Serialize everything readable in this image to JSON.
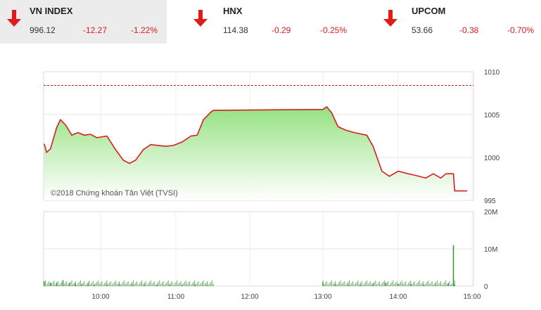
{
  "tickers": [
    {
      "name": "VN INDEX",
      "value": "996.12",
      "change": "-12.27",
      "percent": "-1.22%",
      "direction": "down-arrow-icon"
    },
    {
      "name": "HNX",
      "value": "114.38",
      "change": "-0.29",
      "percent": "-0.25%",
      "direction": "down-arrow-icon"
    },
    {
      "name": "UPCOM",
      "value": "53.66",
      "change": "-0.38",
      "percent": "-0.70%",
      "direction": "down-arrow-icon"
    }
  ],
  "colors": {
    "down": "#e01b1b",
    "line": "#d41f1f",
    "fill_top": "#8fe07a",
    "volume": "#2e8b2e"
  },
  "chart": {
    "watermark": "©2018 Chứng khoán Tân Việt (TVSI)",
    "price_ticks": [
      "1010",
      "1005",
      "1000",
      "995"
    ],
    "volume_ticks": [
      "20M",
      "10M",
      "0"
    ],
    "time_ticks": [
      "10:00",
      "11:00",
      "12:00",
      "13:00",
      "14:00",
      "15:00"
    ]
  },
  "chart_data": {
    "type": "line",
    "reference_value": 1008.4,
    "price_axis": {
      "min": 995,
      "max": 1010
    },
    "volume_axis": {
      "min": 0,
      "max": 20000000
    },
    "price_series": [
      [
        "09:15",
        1001.6
      ],
      [
        "09:17",
        1000.6
      ],
      [
        "09:20",
        1001.0
      ],
      [
        "09:25",
        1003.5
      ],
      [
        "09:28",
        1004.4
      ],
      [
        "09:32",
        1003.8
      ],
      [
        "09:37",
        1002.6
      ],
      [
        "09:42",
        1002.9
      ],
      [
        "09:47",
        1002.6
      ],
      [
        "09:52",
        1002.7
      ],
      [
        "09:57",
        1002.3
      ],
      [
        "10:05",
        1002.5
      ],
      [
        "10:12",
        1000.9
      ],
      [
        "10:18",
        999.7
      ],
      [
        "10:23",
        999.3
      ],
      [
        "10:28",
        999.7
      ],
      [
        "10:34",
        1000.9
      ],
      [
        "10:40",
        1001.5
      ],
      [
        "10:46",
        1001.4
      ],
      [
        "10:52",
        1001.3
      ],
      [
        "10:58",
        1001.4
      ],
      [
        "11:05",
        1001.8
      ],
      [
        "11:12",
        1002.5
      ],
      [
        "11:17",
        1002.6
      ],
      [
        "11:22",
        1004.4
      ],
      [
        "11:28",
        1005.3
      ],
      [
        "11:30",
        1005.5
      ],
      [
        "13:00",
        1005.6
      ],
      [
        "13:03",
        1005.9
      ],
      [
        "13:07",
        1005.2
      ],
      [
        "13:12",
        1003.6
      ],
      [
        "13:18",
        1003.2
      ],
      [
        "13:25",
        1002.9
      ],
      [
        "13:35",
        1002.6
      ],
      [
        "13:40",
        1001.3
      ],
      [
        "13:47",
        998.4
      ],
      [
        "13:53",
        997.8
      ],
      [
        "14:00",
        998.4
      ],
      [
        "14:08",
        998.1
      ],
      [
        "14:14",
        997.9
      ],
      [
        "14:22",
        997.6
      ],
      [
        "14:28",
        998.1
      ],
      [
        "14:34",
        997.6
      ],
      [
        "14:38",
        998.1
      ],
      [
        "14:44",
        998.1
      ],
      [
        "14:45",
        996.1
      ],
      [
        "14:55",
        996.1
      ]
    ],
    "volume_series": [
      [
        "09:15",
        1300000
      ],
      [
        "09:20",
        900000
      ],
      [
        "09:25",
        1000000
      ],
      [
        "09:30",
        1600000
      ],
      [
        "09:35",
        900000
      ],
      [
        "09:40",
        700000
      ],
      [
        "09:45",
        500000
      ],
      [
        "09:50",
        450000
      ],
      [
        "09:55",
        400000
      ],
      [
        "10:05",
        400000
      ],
      [
        "10:15",
        500000
      ],
      [
        "10:25",
        450000
      ],
      [
        "10:35",
        400000
      ],
      [
        "10:45",
        350000
      ],
      [
        "10:55",
        350000
      ],
      [
        "11:05",
        300000
      ],
      [
        "11:15",
        400000
      ],
      [
        "11:25",
        300000
      ],
      [
        "13:00",
        1100000
      ],
      [
        "13:10",
        500000
      ],
      [
        "13:20",
        400000
      ],
      [
        "13:30",
        400000
      ],
      [
        "13:40",
        700000
      ],
      [
        "13:50",
        900000
      ],
      [
        "14:00",
        600000
      ],
      [
        "14:10",
        500000
      ],
      [
        "14:20",
        400000
      ],
      [
        "14:30",
        300000
      ],
      [
        "14:40",
        700000
      ],
      [
        "14:44",
        11000000
      ],
      [
        "14:45",
        400000
      ]
    ]
  }
}
